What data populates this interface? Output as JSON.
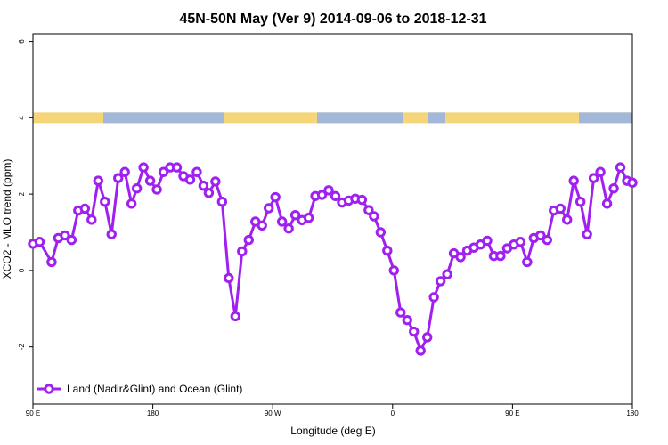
{
  "chart_data": {
    "type": "line",
    "title": "45N-50N May (Ver 9)   2014-09-06 to 2018-12-31",
    "xlabel": "Longitude (deg E)",
    "ylabel": "XCO2 - MLO trend (ppm)",
    "xlim": [
      90,
      540
    ],
    "ylim": [
      -3.5,
      6.2
    ],
    "xticks": [
      {
        "value": 90,
        "label": "90 E"
      },
      {
        "value": 180,
        "label": "180"
      },
      {
        "value": 270,
        "label": "90 W"
      },
      {
        "value": 360,
        "label": "0"
      },
      {
        "value": 450,
        "label": "90 E"
      },
      {
        "value": 540,
        "label": "180"
      }
    ],
    "yticks": [
      {
        "value": -2,
        "label": "-2"
      },
      {
        "value": 0,
        "label": "0"
      },
      {
        "value": 2,
        "label": "2"
      },
      {
        "value": 4,
        "label": "4"
      },
      {
        "value": 6,
        "label": "6"
      }
    ],
    "legend": {
      "position": "bottom-left",
      "entries": [
        "Land (Nadir&Glint) and Ocean (Glint)"
      ]
    },
    "land_ocean_strip": {
      "y_center": 4,
      "land_color": "#F5D57A",
      "ocean_color": "#A3B8D9"
    },
    "series": [
      {
        "name": "Land (Nadir&Glint) and Ocean (Glint)",
        "color": "#A020F0",
        "x": [
          90,
          95,
          104,
          109,
          114,
          119,
          124,
          129,
          134,
          139,
          144,
          149,
          154,
          159,
          164,
          168,
          173,
          178,
          183,
          188,
          193,
          198,
          203,
          208,
          213,
          218,
          222,
          227,
          232,
          237,
          242,
          247,
          252,
          257,
          262,
          267,
          272,
          277,
          282,
          287,
          292,
          297,
          302,
          307,
          312,
          317,
          322,
          327,
          332,
          337,
          342,
          346,
          351,
          356,
          361,
          366,
          371,
          376,
          381,
          386,
          391,
          396,
          401,
          406,
          411,
          416,
          421,
          426,
          431,
          436,
          441,
          446,
          451,
          456,
          461,
          466,
          471,
          476,
          481,
          486,
          491,
          496,
          501,
          506,
          511,
          516,
          521,
          526,
          531,
          536,
          540
        ],
        "y": [
          0.7,
          0.75,
          0.22,
          0.85,
          0.92,
          0.8,
          1.57,
          1.62,
          1.33,
          2.35,
          1.8,
          0.95,
          2.42,
          2.58,
          1.75,
          2.15,
          2.7,
          2.35,
          2.12,
          2.58,
          2.7,
          2.7,
          2.47,
          2.38,
          2.58,
          2.22,
          2.03,
          2.33,
          1.8,
          -0.2,
          -1.2,
          0.5,
          0.8,
          1.28,
          1.18,
          1.63,
          1.92,
          1.28,
          1.1,
          1.45,
          1.32,
          1.38,
          1.95,
          1.98,
          2.1,
          1.95,
          1.78,
          1.83,
          1.88,
          1.85,
          1.58,
          1.42,
          1.0,
          0.52,
          0.0,
          -1.1,
          -1.3,
          -1.6,
          -2.1,
          -1.75,
          -0.7,
          -0.28,
          -0.1,
          0.45,
          0.35,
          0.52,
          0.6,
          0.68,
          0.78,
          0.38,
          0.38,
          0.58,
          0.68,
          0.75,
          0.22,
          0.85,
          0.92,
          0.8,
          1.57,
          1.62,
          1.33,
          2.35,
          1.8,
          0.95,
          2.42,
          2.58,
          1.75,
          2.15,
          2.7,
          2.35,
          2.3
        ]
      }
    ]
  }
}
